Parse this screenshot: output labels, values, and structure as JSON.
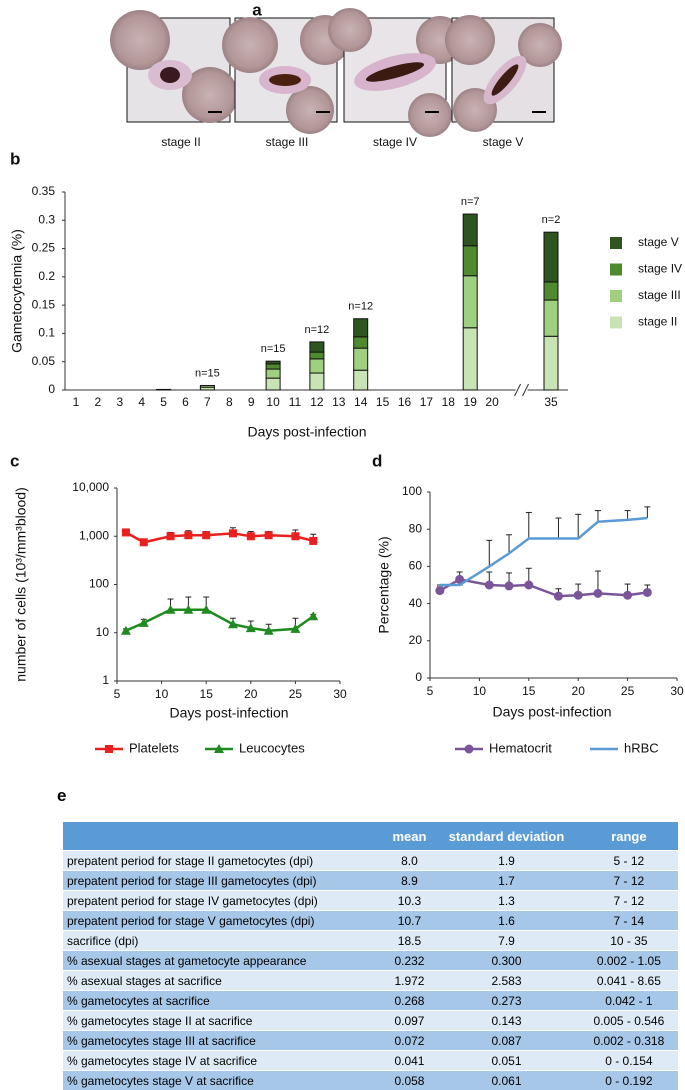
{
  "panel_a": {
    "label": "a",
    "captions": [
      "stage II",
      "stage III",
      "stage IV",
      "stage V"
    ]
  },
  "chart_data": [
    {
      "panel_label": "b",
      "type": "bar",
      "stacked": true,
      "ylabel": "Gametocytemia (%)",
      "xlabel": "Days post-infection",
      "categories": [
        "1",
        "2",
        "3",
        "4",
        "5",
        "6",
        "7",
        "8",
        "9",
        "10",
        "11",
        "12",
        "13",
        "14",
        "15",
        "16",
        "17",
        "18",
        "19",
        "20",
        "35"
      ],
      "ylim": [
        0,
        0.35
      ],
      "yticks": [
        0,
        0.05,
        0.1,
        0.15,
        0.2,
        0.25,
        0.3,
        0.35
      ],
      "series": [
        {
          "name": "stage II",
          "color": "#c8e4b4",
          "values": [
            null,
            null,
            null,
            null,
            0.001,
            null,
            0.005,
            null,
            null,
            0.021,
            null,
            0.03,
            null,
            0.035,
            null,
            null,
            null,
            null,
            0.11,
            null,
            0.095
          ]
        },
        {
          "name": "stage III",
          "color": "#9fd07f",
          "values": [
            null,
            null,
            null,
            null,
            null,
            null,
            0.003,
            null,
            null,
            0.016,
            null,
            0.025,
            null,
            0.039,
            null,
            null,
            null,
            null,
            0.092,
            null,
            0.064
          ]
        },
        {
          "name": "stage IV",
          "color": "#4f8a2f",
          "values": [
            null,
            null,
            null,
            null,
            null,
            null,
            null,
            null,
            null,
            0.009,
            null,
            0.012,
            null,
            0.02,
            null,
            null,
            null,
            null,
            0.053,
            null,
            0.032
          ]
        },
        {
          "name": "stage V",
          "color": "#2e5520",
          "values": [
            null,
            null,
            null,
            null,
            null,
            null,
            null,
            null,
            null,
            0.005,
            null,
            0.018,
            null,
            0.032,
            null,
            null,
            null,
            null,
            0.056,
            null,
            0.088
          ]
        }
      ],
      "n_labels": [
        null,
        null,
        null,
        null,
        null,
        null,
        "n=15",
        null,
        null,
        "n=15",
        null,
        "n=12",
        null,
        "n=12",
        null,
        null,
        null,
        null,
        "n=7",
        null,
        "n=2"
      ]
    },
    {
      "panel_label": "c",
      "type": "line",
      "yscale": "log",
      "ylabel": "number of cells (10³/mm³blood)",
      "xlabel": "Days post-infection",
      "x": [
        6,
        8,
        11,
        13,
        15,
        18,
        20,
        22,
        25,
        27
      ],
      "xlim": [
        5,
        30
      ],
      "xticks": [
        5,
        10,
        15,
        20,
        25,
        30
      ],
      "ylim": [
        1,
        10000
      ],
      "yticks": [
        1,
        10,
        100,
        {
          "value": 1000,
          "label": "1,000"
        },
        {
          "value": 10000,
          "label": "10,000"
        }
      ],
      "series": [
        {
          "name": "Platelets",
          "color": "#e8201f",
          "marker": "square",
          "values": [
            1200,
            750,
            1000,
            1050,
            1050,
            1150,
            1000,
            1050,
            1000,
            800
          ],
          "errors": [
            150,
            100,
            200,
            250,
            200,
            350,
            250,
            200,
            350,
            300
          ]
        },
        {
          "name": "Leucocytes",
          "color": "#1f8a1f",
          "marker": "triangle",
          "values": [
            11,
            16,
            30,
            30,
            30,
            15,
            12.5,
            11,
            12,
            22
          ],
          "errors": [
            1,
            3,
            20,
            25,
            25,
            5,
            5,
            4,
            8,
            2
          ]
        }
      ]
    },
    {
      "panel_label": "d",
      "type": "line",
      "ylabel": "Percentage (%)",
      "xlabel": "Days post-infection",
      "x": [
        6,
        8,
        11,
        13,
        15,
        18,
        20,
        22,
        25,
        27
      ],
      "xlim": [
        5,
        30
      ],
      "xticks": [
        5,
        10,
        15,
        20,
        25,
        30
      ],
      "ylim": [
        0,
        100
      ],
      "yticks": [
        0,
        20,
        40,
        60,
        80,
        100
      ],
      "series": [
        {
          "name": "Hematocrit",
          "color": "#7a559a",
          "marker": "circle",
          "values": [
            47,
            53,
            50,
            49.5,
            50,
            44,
            44.5,
            45.5,
            44.5,
            46
          ],
          "errors": [
            2,
            4,
            7,
            7,
            9,
            4,
            6,
            12,
            6,
            4
          ]
        },
        {
          "name": "hRBC",
          "color": "#5b9bd5",
          "marker": "none",
          "values": [
            50,
            50,
            60,
            67,
            75,
            75,
            75,
            84,
            85,
            86
          ],
          "errors": [
            0,
            0,
            14,
            10,
            14,
            11,
            13,
            6,
            5,
            6
          ]
        }
      ]
    }
  ],
  "table": {
    "label": "e",
    "header": [
      "mean",
      "standard deviation",
      "range"
    ],
    "rows": [
      [
        "prepatent period for stage II gametocytes (dpi)",
        "8.0",
        "1.9",
        "5 - 12"
      ],
      [
        "prepatent period for stage III gametocytes (dpi)",
        "8.9",
        "1.7",
        "7 - 12"
      ],
      [
        "prepatent period for stage IV gametocytes (dpi)",
        "10.3",
        "1.3",
        "7 - 12"
      ],
      [
        "prepatent period for stage V gametocytes (dpi)",
        "10.7",
        "1.6",
        "7 - 14"
      ],
      [
        "sacrifice (dpi)",
        "18.5",
        "7.9",
        "10 - 35"
      ],
      [
        "% asexual stages at gametocyte appearance",
        "0.232",
        "0.300",
        "0.002 - 1.05"
      ],
      [
        "% asexual stages at sacrifice",
        "1.972",
        "2.583",
        "0.041 - 8.65"
      ],
      [
        "% gametocytes at sacrifice",
        "0.268",
        "0.273",
        "0.042 - 1"
      ],
      [
        "% gametocytes stage II at sacrifice",
        "0.097",
        "0.143",
        "0.005 - 0.546"
      ],
      [
        "% gametocytes stage III at sacrifice",
        "0.072",
        "0.087",
        "0.002 - 0.318"
      ],
      [
        "% gametocytes stage IV at sacrifice",
        "0.041",
        "0.051",
        "0 - 0.154"
      ],
      [
        "% gametocytes stage V at sacrifice",
        "0.058",
        "0.061",
        "0 - 0.192"
      ]
    ]
  }
}
